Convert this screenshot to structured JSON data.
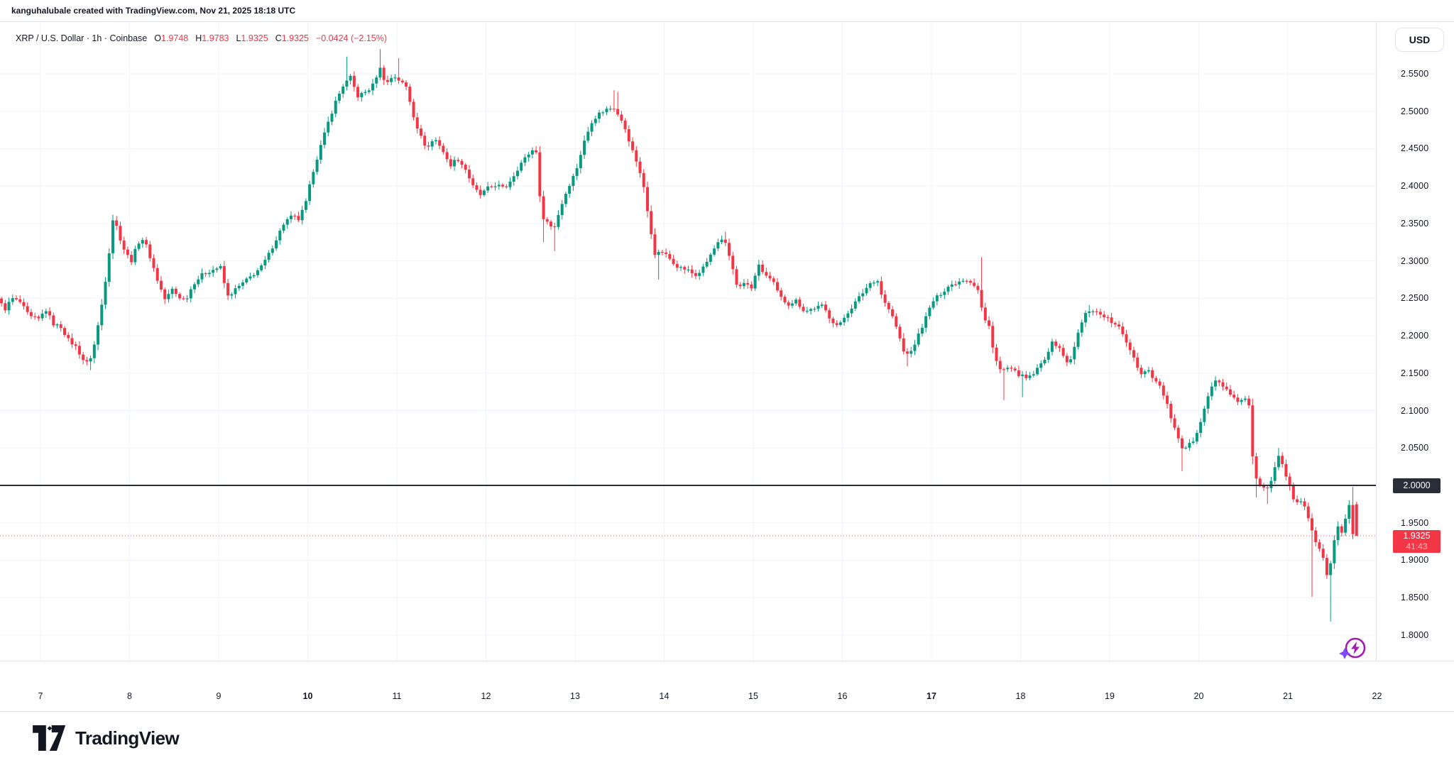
{
  "header": {
    "credit": "kanguhalubale created with TradingView.com, Nov 21, 2025 18:18 UTC"
  },
  "legend": {
    "title": "XRP / U.S. Dollar · 1h · Coinbase",
    "ohlc": [
      {
        "label": "O",
        "value": "1.9748"
      },
      {
        "label": "H",
        "value": "1.9783"
      },
      {
        "label": "L",
        "value": "1.9325"
      },
      {
        "label": "C",
        "value": "1.9325"
      }
    ],
    "change": "−0.0424 (−2.15%)"
  },
  "axis": {
    "currency_button": "USD",
    "price_ticks": [
      {
        "label": "2.5500",
        "value": 2.55
      },
      {
        "label": "2.5000",
        "value": 2.5
      },
      {
        "label": "2.4500",
        "value": 2.45
      },
      {
        "label": "2.4000",
        "value": 2.4
      },
      {
        "label": "2.3500",
        "value": 2.35
      },
      {
        "label": "2.3000",
        "value": 2.3
      },
      {
        "label": "2.2500",
        "value": 2.25
      },
      {
        "label": "2.2000",
        "value": 2.2
      },
      {
        "label": "2.1500",
        "value": 2.15
      },
      {
        "label": "2.1000",
        "value": 2.1
      },
      {
        "label": "2.0500",
        "value": 2.05
      },
      {
        "label": "2.0000",
        "value": 2.0
      },
      {
        "label": "1.9500",
        "value": 1.95
      },
      {
        "label": "1.9000",
        "value": 1.9
      },
      {
        "label": "1.8500",
        "value": 1.85
      },
      {
        "label": "1.8000",
        "value": 1.8
      }
    ],
    "time_ticks": [
      {
        "label": "7",
        "day": 7,
        "bold": false
      },
      {
        "label": "8",
        "day": 8,
        "bold": false
      },
      {
        "label": "9",
        "day": 9,
        "bold": false
      },
      {
        "label": "10",
        "day": 10,
        "bold": true
      },
      {
        "label": "11",
        "day": 11,
        "bold": false
      },
      {
        "label": "12",
        "day": 12,
        "bold": false
      },
      {
        "label": "13",
        "day": 13,
        "bold": false
      },
      {
        "label": "14",
        "day": 14,
        "bold": false
      },
      {
        "label": "15",
        "day": 15,
        "bold": false
      },
      {
        "label": "16",
        "day": 16,
        "bold": false
      },
      {
        "label": "17",
        "day": 17,
        "bold": true
      },
      {
        "label": "18",
        "day": 18,
        "bold": false
      },
      {
        "label": "19",
        "day": 19,
        "bold": false
      },
      {
        "label": "20",
        "day": 20,
        "bold": false
      },
      {
        "label": "21",
        "day": 21,
        "bold": false
      },
      {
        "label": "22",
        "day": 22,
        "bold": false
      }
    ]
  },
  "levels": {
    "black_line": {
      "price": 2.0,
      "label": "2.0000"
    },
    "last_price": {
      "price": 1.9325,
      "label": "1.9325",
      "countdown": "41:43"
    }
  },
  "footer": {
    "brand": "TradingView"
  },
  "colors": {
    "up": "#089981",
    "down": "#f23645",
    "grid": "#f0f3fa",
    "border": "#e0e3eb",
    "text": "#131722",
    "badge_dark": "#2a2e39",
    "accent_red": "#f23645",
    "boost_circle": "#a21caf",
    "boost_sparkle": "#7c4dff"
  },
  "chart_data": {
    "type": "candlestick",
    "symbol": "XRP/USD",
    "exchange": "Coinbase",
    "interval": "1h",
    "x_unit": "day_of_november_2025",
    "x_domain_days": [
      6.5417,
      21.88
    ],
    "y_domain": [
      1.77,
      2.62
    ],
    "last_candle": {
      "open": 1.9748,
      "high": 1.9783,
      "low": 1.9325,
      "close": 1.9325
    },
    "price_path": [
      [
        6.54,
        2.25
      ],
      [
        6.62,
        2.235
      ],
      [
        6.7,
        2.25
      ],
      [
        6.79,
        2.245
      ],
      [
        6.9,
        2.225
      ],
      [
        7.0,
        2.222
      ],
      [
        7.08,
        2.235
      ],
      [
        7.17,
        2.215
      ],
      [
        7.25,
        2.212
      ],
      [
        7.33,
        2.195
      ],
      [
        7.42,
        2.185
      ],
      [
        7.5,
        2.168
      ],
      [
        7.56,
        2.162
      ],
      [
        7.63,
        2.19
      ],
      [
        7.7,
        2.235
      ],
      [
        7.77,
        2.29
      ],
      [
        7.84,
        2.362
      ],
      [
        7.9,
        2.335
      ],
      [
        7.97,
        2.312
      ],
      [
        8.04,
        2.3
      ],
      [
        8.12,
        2.325
      ],
      [
        8.18,
        2.33
      ],
      [
        8.26,
        2.302
      ],
      [
        8.34,
        2.272
      ],
      [
        8.42,
        2.248
      ],
      [
        8.5,
        2.262
      ],
      [
        8.57,
        2.252
      ],
      [
        8.65,
        2.248
      ],
      [
        8.74,
        2.27
      ],
      [
        8.84,
        2.282
      ],
      [
        8.95,
        2.288
      ],
      [
        9.04,
        2.292
      ],
      [
        9.12,
        2.252
      ],
      [
        9.21,
        2.262
      ],
      [
        9.31,
        2.272
      ],
      [
        9.41,
        2.282
      ],
      [
        9.5,
        2.292
      ],
      [
        9.58,
        2.308
      ],
      [
        9.67,
        2.33
      ],
      [
        9.76,
        2.352
      ],
      [
        9.85,
        2.36
      ],
      [
        9.92,
        2.355
      ],
      [
        10.0,
        2.378
      ],
      [
        10.08,
        2.42
      ],
      [
        10.17,
        2.455
      ],
      [
        10.25,
        2.485
      ],
      [
        10.33,
        2.512
      ],
      [
        10.42,
        2.535
      ],
      [
        10.5,
        2.545
      ],
      [
        10.58,
        2.52
      ],
      [
        10.66,
        2.525
      ],
      [
        10.74,
        2.532
      ],
      [
        10.83,
        2.558
      ],
      [
        10.9,
        2.536
      ],
      [
        10.98,
        2.548
      ],
      [
        11.06,
        2.54
      ],
      [
        11.13,
        2.532
      ],
      [
        11.2,
        2.497
      ],
      [
        11.28,
        2.468
      ],
      [
        11.36,
        2.45
      ],
      [
        11.44,
        2.464
      ],
      [
        11.52,
        2.452
      ],
      [
        11.61,
        2.427
      ],
      [
        11.7,
        2.437
      ],
      [
        11.79,
        2.423
      ],
      [
        11.88,
        2.398
      ],
      [
        11.96,
        2.388
      ],
      [
        12.05,
        2.398
      ],
      [
        12.14,
        2.402
      ],
      [
        12.23,
        2.396
      ],
      [
        12.32,
        2.412
      ],
      [
        12.41,
        2.43
      ],
      [
        12.5,
        2.443
      ],
      [
        12.58,
        2.452
      ],
      [
        12.64,
        2.362
      ],
      [
        12.71,
        2.352
      ],
      [
        12.78,
        2.342
      ],
      [
        12.86,
        2.372
      ],
      [
        12.94,
        2.398
      ],
      [
        13.03,
        2.42
      ],
      [
        13.12,
        2.458
      ],
      [
        13.21,
        2.487
      ],
      [
        13.29,
        2.497
      ],
      [
        13.38,
        2.503
      ],
      [
        13.46,
        2.505
      ],
      [
        13.54,
        2.49
      ],
      [
        13.62,
        2.462
      ],
      [
        13.7,
        2.436
      ],
      [
        13.78,
        2.408
      ],
      [
        13.85,
        2.352
      ],
      [
        13.92,
        2.308
      ],
      [
        14.0,
        2.312
      ],
      [
        14.09,
        2.302
      ],
      [
        14.18,
        2.292
      ],
      [
        14.28,
        2.288
      ],
      [
        14.38,
        2.28
      ],
      [
        14.47,
        2.292
      ],
      [
        14.56,
        2.312
      ],
      [
        14.65,
        2.328
      ],
      [
        14.71,
        2.322
      ],
      [
        14.78,
        2.295
      ],
      [
        14.85,
        2.262
      ],
      [
        14.93,
        2.272
      ],
      [
        15.0,
        2.262
      ],
      [
        15.07,
        2.295
      ],
      [
        15.15,
        2.282
      ],
      [
        15.24,
        2.272
      ],
      [
        15.32,
        2.252
      ],
      [
        15.41,
        2.242
      ],
      [
        15.5,
        2.247
      ],
      [
        15.6,
        2.232
      ],
      [
        15.7,
        2.237
      ],
      [
        15.8,
        2.24
      ],
      [
        15.89,
        2.222
      ],
      [
        15.98,
        2.212
      ],
      [
        16.06,
        2.228
      ],
      [
        16.15,
        2.242
      ],
      [
        16.24,
        2.256
      ],
      [
        16.33,
        2.27
      ],
      [
        16.41,
        2.276
      ],
      [
        16.48,
        2.247
      ],
      [
        16.56,
        2.232
      ],
      [
        16.64,
        2.207
      ],
      [
        16.71,
        2.178
      ],
      [
        16.79,
        2.177
      ],
      [
        16.87,
        2.2
      ],
      [
        16.95,
        2.222
      ],
      [
        17.03,
        2.245
      ],
      [
        17.12,
        2.256
      ],
      [
        17.21,
        2.266
      ],
      [
        17.3,
        2.271
      ],
      [
        17.39,
        2.276
      ],
      [
        17.47,
        2.272
      ],
      [
        17.54,
        2.262
      ],
      [
        17.61,
        2.222
      ],
      [
        17.67,
        2.212
      ],
      [
        17.73,
        2.172
      ],
      [
        17.8,
        2.152
      ],
      [
        17.87,
        2.157
      ],
      [
        17.95,
        2.152
      ],
      [
        18.02,
        2.147
      ],
      [
        18.1,
        2.142
      ],
      [
        18.19,
        2.152
      ],
      [
        18.28,
        2.167
      ],
      [
        18.37,
        2.19
      ],
      [
        18.45,
        2.187
      ],
      [
        18.53,
        2.163
      ],
      [
        18.6,
        2.172
      ],
      [
        18.67,
        2.205
      ],
      [
        18.74,
        2.228
      ],
      [
        18.81,
        2.236
      ],
      [
        18.89,
        2.23
      ],
      [
        18.97,
        2.226
      ],
      [
        19.05,
        2.217
      ],
      [
        19.13,
        2.21
      ],
      [
        19.21,
        2.192
      ],
      [
        19.29,
        2.172
      ],
      [
        19.37,
        2.148
      ],
      [
        19.44,
        2.157
      ],
      [
        19.52,
        2.142
      ],
      [
        19.6,
        2.13
      ],
      [
        19.68,
        2.102
      ],
      [
        19.76,
        2.072
      ],
      [
        19.83,
        2.047
      ],
      [
        19.9,
        2.052
      ],
      [
        19.97,
        2.062
      ],
      [
        20.05,
        2.09
      ],
      [
        20.12,
        2.118
      ],
      [
        20.2,
        2.14
      ],
      [
        20.28,
        2.136
      ],
      [
        20.36,
        2.122
      ],
      [
        20.44,
        2.112
      ],
      [
        20.52,
        2.116
      ],
      [
        20.58,
        2.112
      ],
      [
        20.64,
        2.012
      ],
      [
        20.71,
        2.002
      ],
      [
        20.78,
        1.996
      ],
      [
        20.85,
        2.012
      ],
      [
        20.91,
        2.044
      ],
      [
        20.97,
        2.022
      ],
      [
        21.03,
        2.002
      ],
      [
        21.1,
        1.976
      ],
      [
        21.16,
        1.981
      ],
      [
        21.22,
        1.971
      ],
      [
        21.29,
        1.938
      ],
      [
        21.35,
        1.921
      ],
      [
        21.41,
        1.906
      ],
      [
        21.46,
        1.879
      ],
      [
        21.5,
        1.896
      ],
      [
        21.55,
        1.931
      ],
      [
        21.59,
        1.946
      ],
      [
        21.63,
        1.937
      ],
      [
        21.67,
        1.956
      ],
      [
        21.71,
        1.975
      ],
      [
        21.75,
        1.9325
      ]
    ],
    "wick_spikes": [
      [
        7.56,
        2.154
      ],
      [
        10.42,
        2.573
      ],
      [
        10.83,
        2.583
      ],
      [
        11.02,
        2.571
      ],
      [
        12.64,
        2.325
      ],
      [
        12.78,
        2.313
      ],
      [
        13.42,
        2.528
      ],
      [
        13.5,
        2.526
      ],
      [
        13.92,
        2.275
      ],
      [
        14.7,
        2.339
      ],
      [
        16.71,
        2.159
      ],
      [
        17.56,
        2.305
      ],
      [
        17.8,
        2.114
      ],
      [
        18.03,
        2.118
      ],
      [
        18.79,
        2.241
      ],
      [
        19.83,
        2.019
      ],
      [
        20.63,
        1.984
      ],
      [
        20.79,
        1.975
      ],
      [
        20.91,
        2.05
      ],
      [
        21.29,
        1.851
      ],
      [
        21.49,
        1.818
      ],
      [
        21.71,
        1.998
      ]
    ]
  }
}
